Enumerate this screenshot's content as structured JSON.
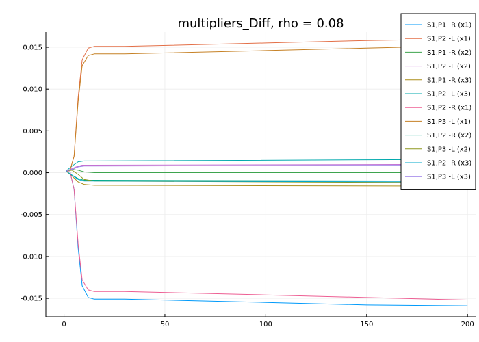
{
  "chart_data": {
    "type": "line",
    "title": "multipliers_Diff, rho = 0.08",
    "xlabel": "",
    "ylabel": "",
    "xlim": [
      -9,
      204
    ],
    "ylim": [
      -0.0172,
      0.0168
    ],
    "xticks": [
      0,
      50,
      100,
      150,
      200
    ],
    "xtick_labels": [
      "0",
      "50",
      "100",
      "150",
      "200"
    ],
    "yticks": [
      -0.015,
      -0.01,
      -0.005,
      0.0,
      0.005,
      0.01,
      0.015
    ],
    "ytick_labels": [
      "-0.015",
      "-0.010",
      "-0.005",
      "0.000",
      "0.005",
      "0.010",
      "0.015"
    ],
    "grid": true,
    "legend_position": "top-right",
    "series": [
      {
        "name": "S1,P1 -R (x1)",
        "color": "#009AFA",
        "points": [
          [
            1,
            0.0002
          ],
          [
            3,
            0.0001
          ],
          [
            5,
            -0.002
          ],
          [
            7,
            -0.009
          ],
          [
            9,
            -0.0135
          ],
          [
            12,
            -0.0149
          ],
          [
            15,
            -0.0151
          ],
          [
            30,
            -0.0151
          ],
          [
            100,
            -0.0155
          ],
          [
            150,
            -0.0158
          ],
          [
            200,
            -0.0159
          ]
        ]
      },
      {
        "name": "S1,P2 -L (x1)",
        "color": "#E36F47",
        "points": [
          [
            1,
            0.0002
          ],
          [
            3,
            0.0003
          ],
          [
            5,
            0.002
          ],
          [
            7,
            0.009
          ],
          [
            9,
            0.0135
          ],
          [
            12,
            0.0149
          ],
          [
            15,
            0.0151
          ],
          [
            30,
            0.0151
          ],
          [
            100,
            0.0155
          ],
          [
            150,
            0.0158
          ],
          [
            200,
            0.016
          ]
        ]
      },
      {
        "name": "S1,P1 -R (x2)",
        "color": "#3EA44E",
        "points": [
          [
            1,
            0.0002
          ],
          [
            4,
            0.0004
          ],
          [
            7,
            0.0003
          ],
          [
            10,
            0.0001
          ],
          [
            15,
            0.0
          ],
          [
            50,
            0.0
          ],
          [
            200,
            0.0
          ]
        ]
      },
      {
        "name": "S1,P2 -L (x2)",
        "color": "#C271D2",
        "points": [
          [
            1,
            0.0002
          ],
          [
            4,
            0.0005
          ],
          [
            6,
            0.0007
          ],
          [
            9,
            0.0009
          ],
          [
            14,
            0.0009
          ],
          [
            200,
            0.001
          ]
        ]
      },
      {
        "name": "S1,P1 -R (x3)",
        "color": "#AC8D18",
        "points": [
          [
            1,
            0.0002
          ],
          [
            4,
            -0.0004
          ],
          [
            7,
            -0.0011
          ],
          [
            10,
            -0.0014
          ],
          [
            15,
            -0.0015
          ],
          [
            200,
            -0.0016
          ]
        ]
      },
      {
        "name": "S1,P2 -L (x3)",
        "color": "#00A9AD",
        "points": [
          [
            1,
            0.0002
          ],
          [
            4,
            0.0008
          ],
          [
            7,
            0.0013
          ],
          [
            10,
            0.0014
          ],
          [
            15,
            0.0014
          ],
          [
            200,
            0.0016
          ]
        ]
      },
      {
        "name": "S1,P2 -R (x1)",
        "color": "#ED5E93",
        "points": [
          [
            1,
            0.0002
          ],
          [
            3,
            0.0001
          ],
          [
            5,
            -0.002
          ],
          [
            7,
            -0.0085
          ],
          [
            9,
            -0.0128
          ],
          [
            12,
            -0.014
          ],
          [
            15,
            -0.0142
          ],
          [
            30,
            -0.0142
          ],
          [
            100,
            -0.0146
          ],
          [
            150,
            -0.0149
          ],
          [
            200,
            -0.0152
          ]
        ]
      },
      {
        "name": "S1,P3 -L (x1)",
        "color": "#C68125",
        "points": [
          [
            1,
            0.0002
          ],
          [
            3,
            0.0003
          ],
          [
            5,
            0.002
          ],
          [
            7,
            0.0085
          ],
          [
            9,
            0.0128
          ],
          [
            12,
            0.014
          ],
          [
            15,
            0.0142
          ],
          [
            30,
            0.0142
          ],
          [
            100,
            0.0146
          ],
          [
            150,
            0.0149
          ],
          [
            200,
            0.0152
          ]
        ]
      },
      {
        "name": "S1,P2 -R (x2)",
        "color": "#00A98D",
        "points": [
          [
            1,
            0.0002
          ],
          [
            4,
            -0.0003
          ],
          [
            7,
            -0.0007
          ],
          [
            10,
            -0.0009
          ],
          [
            15,
            -0.0009
          ],
          [
            200,
            -0.001
          ]
        ]
      },
      {
        "name": "S1,P3 -L (x2)",
        "color": "#8E971D",
        "points": [
          [
            1,
            0.0002
          ],
          [
            4,
            0.0003
          ],
          [
            7,
            -0.0002
          ],
          [
            10,
            -0.0008
          ],
          [
            15,
            -0.001
          ],
          [
            200,
            -0.0012
          ]
        ]
      },
      {
        "name": "S1,P2 -R (x3)",
        "color": "#00A8CB",
        "points": [
          [
            1,
            0.0002
          ],
          [
            4,
            -0.0003
          ],
          [
            7,
            -0.0008
          ],
          [
            10,
            -0.001
          ],
          [
            15,
            -0.001
          ],
          [
            200,
            -0.0011
          ]
        ]
      },
      {
        "name": "S1,P3 -L (x3)",
        "color": "#9B7FE9",
        "points": [
          [
            1,
            0.0002
          ],
          [
            4,
            0.0004
          ],
          [
            7,
            0.0007
          ],
          [
            10,
            0.0008
          ],
          [
            15,
            0.0008
          ],
          [
            200,
            0.0009
          ]
        ]
      }
    ]
  }
}
